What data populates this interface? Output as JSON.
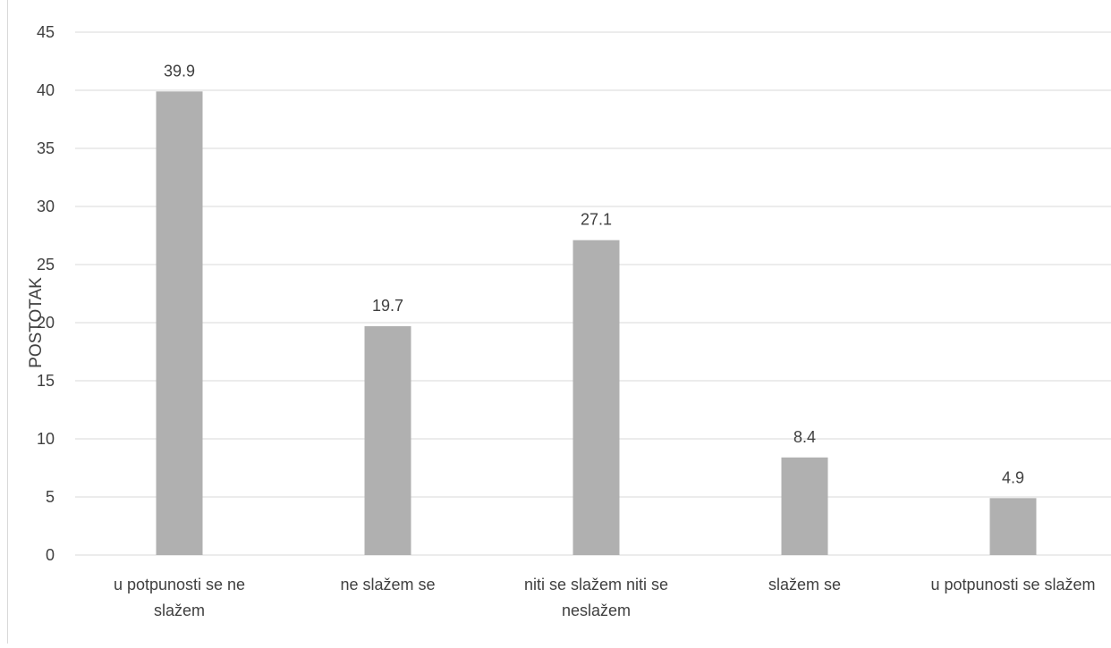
{
  "chart_data": {
    "type": "bar",
    "title": "",
    "xlabel": "",
    "ylabel": "POSTOTAK",
    "categories": [
      "u potpunosti se ne slažem",
      "ne slažem se",
      "niti se slažem niti se neslažem",
      "slažem se",
      "u potpunosti se slažem"
    ],
    "category_lines": [
      [
        "u potpunosti se ne",
        "slažem"
      ],
      [
        "ne slažem se"
      ],
      [
        "niti se slažem niti se",
        "neslažem"
      ],
      [
        "slažem se"
      ],
      [
        "u potpunosti se slažem"
      ]
    ],
    "values": [
      39.9,
      19.7,
      27.1,
      8.4,
      4.9
    ],
    "data_labels": [
      "39.9",
      "19.7",
      "27.1",
      "8.4",
      "4.9"
    ],
    "ylim": [
      0,
      45
    ],
    "yticks": [
      0,
      5,
      10,
      15,
      20,
      25,
      30,
      35,
      40,
      45
    ],
    "grid": true,
    "legend": "none",
    "colors": {
      "bar": "#b0b0b0",
      "grid": "#d9d9d9",
      "text": "#404040",
      "frame": "#d9d9d9"
    }
  }
}
